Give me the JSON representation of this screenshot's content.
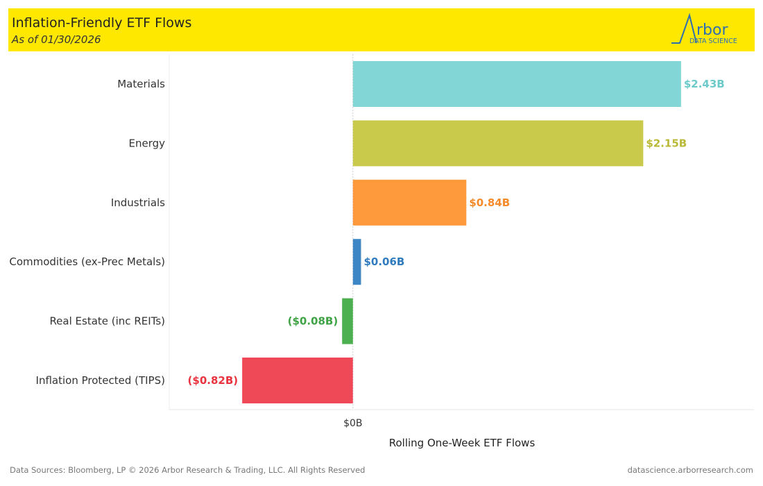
{
  "header": {
    "title": "Inflation-Friendly ETF Flows",
    "subtitle": "As of 01/30/2026",
    "logo_text": "Arbor",
    "logo_sub": "DATA SCIENCE"
  },
  "footer": {
    "left": "Data Sources: Bloomberg, LP © 2026 Arbor Research & Trading, LLC. All Rights Reserved",
    "right": "datascience.arborresearch.com"
  },
  "chart_data": {
    "type": "bar",
    "orientation": "horizontal",
    "categories": [
      "Materials",
      "Energy",
      "Industrials",
      "Commodities (ex-Prec Metals)",
      "Real Estate (inc REITs)",
      "Inflation Protected (TIPS)"
    ],
    "values": [
      2.43,
      2.15,
      0.84,
      0.06,
      -0.08,
      -0.82
    ],
    "data_labels": [
      "$2.43B",
      "$2.15B",
      "$0.84B",
      "$0.06B",
      "($0.08B)",
      "($0.82B)"
    ],
    "colors": [
      "#82d6d6",
      "#c9c94b",
      "#ff9a3c",
      "#3d86c6",
      "#4caf50",
      "#ef4857"
    ],
    "label_colors": [
      "#6ccaca",
      "#b9b935",
      "#f58a28",
      "#2f7bbd",
      "#3fa244",
      "#e8333f"
    ],
    "xlabel": "Rolling One-Week ETF Flows",
    "x_ticks": [
      "$0B"
    ],
    "xlim": [
      -1.36,
      2.97
    ],
    "grid": false
  }
}
